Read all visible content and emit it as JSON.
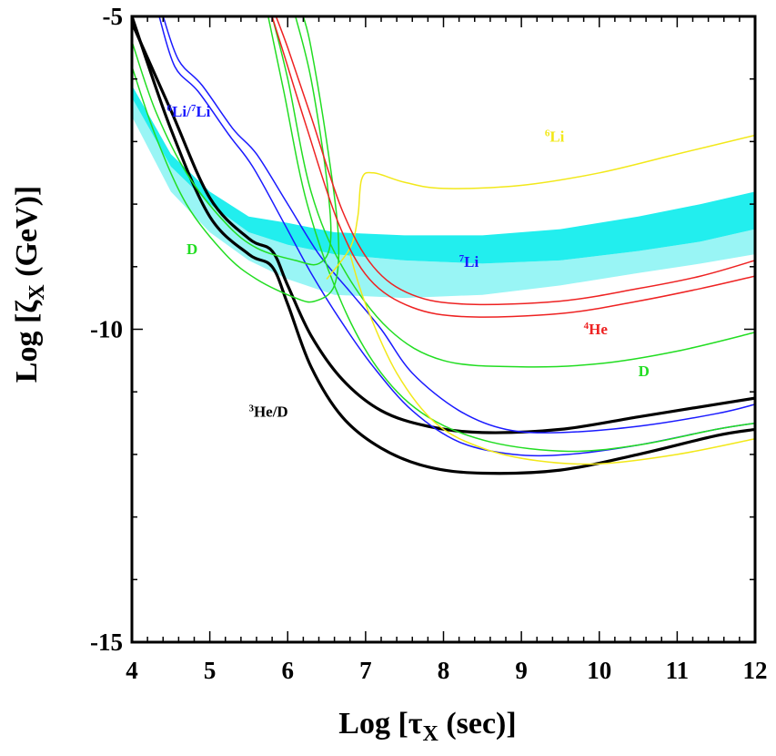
{
  "chart_data": {
    "type": "line",
    "x_axis": {
      "label": "Log [τ",
      "label_sub": "X",
      "label_end": " (sec)]",
      "lim": [
        4,
        12
      ],
      "ticks": [
        "4",
        "5",
        "6",
        "7",
        "8",
        "9",
        "10",
        "11",
        "12"
      ]
    },
    "y_axis": {
      "label": "Log [ζ",
      "label_sub": "X",
      "label_end": " (GeV)]",
      "lim": [
        -15,
        -5
      ],
      "ticks": [
        "-5",
        "-10",
        "-15"
      ]
    },
    "colors": {
      "black": "#000000",
      "blue": "#1a1aff",
      "green": "#22dd22",
      "red": "#ee2222",
      "yellow": "#f2e81a",
      "cyan": "#22eeee",
      "cyan_light": "#99f5f5"
    },
    "labels": [
      {
        "text": "6",
        "text2": "Li/",
        "text3": "7",
        "text4": "Li",
        "color": "blue"
      },
      {
        "text": "6",
        "text2": "Li",
        "color": "yellow"
      },
      {
        "text": "7",
        "text2": "Li",
        "color": "blue"
      },
      {
        "text": "4",
        "text2": "He",
        "color": "red"
      },
      {
        "text": "D",
        "color": "green"
      },
      {
        "text": "D",
        "color": "green"
      },
      {
        "text": "3",
        "text2": "He/D",
        "color": "black"
      }
    ],
    "series": [
      {
        "color": "black",
        "width": 3.2,
        "points": [
          [
            4,
            -5
          ],
          [
            4.5,
            -6.8
          ],
          [
            5,
            -8.2
          ],
          [
            5.5,
            -8.8
          ],
          [
            5.8,
            -9.0
          ],
          [
            6.0,
            -9.6
          ],
          [
            6.3,
            -10.6
          ],
          [
            6.7,
            -11.4
          ],
          [
            7.2,
            -11.9
          ],
          [
            7.8,
            -12.2
          ],
          [
            8.5,
            -12.3
          ],
          [
            9.5,
            -12.25
          ],
          [
            10.5,
            -12.0
          ],
          [
            11.5,
            -11.7
          ],
          [
            12,
            -11.6
          ]
        ]
      },
      {
        "color": "black",
        "width": 3.2,
        "points": [
          [
            4,
            -5.1
          ],
          [
            4.5,
            -6.5
          ],
          [
            5,
            -7.9
          ],
          [
            5.5,
            -8.55
          ],
          [
            5.8,
            -8.75
          ],
          [
            6.0,
            -9.3
          ],
          [
            6.3,
            -10.1
          ],
          [
            6.7,
            -10.8
          ],
          [
            7.2,
            -11.3
          ],
          [
            7.8,
            -11.55
          ],
          [
            8.5,
            -11.65
          ],
          [
            9.5,
            -11.6
          ],
          [
            10.5,
            -11.4
          ],
          [
            11.5,
            -11.2
          ],
          [
            12,
            -11.1
          ]
        ]
      },
      {
        "color": "blue",
        "width": 1.5,
        "points": [
          [
            4.4,
            -5
          ],
          [
            4.6,
            -5.7
          ],
          [
            4.9,
            -6.1
          ],
          [
            5.3,
            -6.8
          ],
          [
            5.6,
            -7.2
          ],
          [
            6.0,
            -8.0
          ],
          [
            6.4,
            -8.8
          ],
          [
            6.8,
            -9.4
          ],
          [
            7.2,
            -10.0
          ],
          [
            7.6,
            -10.7
          ],
          [
            8.2,
            -11.3
          ],
          [
            8.8,
            -11.6
          ],
          [
            9.5,
            -11.65
          ],
          [
            10.5,
            -11.55
          ],
          [
            11.5,
            -11.35
          ],
          [
            12,
            -11.2
          ]
        ]
      },
      {
        "color": "blue",
        "width": 1.5,
        "points": [
          [
            4.35,
            -5
          ],
          [
            4.55,
            -5.8
          ],
          [
            4.85,
            -6.2
          ],
          [
            5.25,
            -6.9
          ],
          [
            5.55,
            -7.4
          ],
          [
            5.95,
            -8.3
          ],
          [
            6.3,
            -9.1
          ],
          [
            6.7,
            -9.9
          ],
          [
            7.1,
            -10.6
          ],
          [
            7.6,
            -11.3
          ],
          [
            8.2,
            -11.8
          ],
          [
            8.9,
            -12.0
          ],
          [
            9.6,
            -12.0
          ],
          [
            10.5,
            -11.85
          ],
          [
            11.5,
            -11.6
          ],
          [
            12,
            -11.5
          ]
        ]
      },
      {
        "color": "green",
        "width": 1.5,
        "points": [
          [
            4,
            -5.4
          ],
          [
            4.3,
            -6.5
          ],
          [
            4.7,
            -7.5
          ],
          [
            5.2,
            -8.3
          ],
          [
            5.6,
            -8.7
          ],
          [
            6.1,
            -8.9
          ],
          [
            6.4,
            -8.95
          ],
          [
            6.55,
            -8.6
          ],
          [
            6.5,
            -7.6
          ],
          [
            6.3,
            -6.0
          ],
          [
            6.1,
            -5
          ]
        ]
      },
      {
        "color": "green",
        "width": 1.5,
        "points": [
          [
            4,
            -5.8
          ],
          [
            4.3,
            -6.9
          ],
          [
            4.7,
            -8.0
          ],
          [
            5.2,
            -8.8
          ],
          [
            5.6,
            -9.2
          ],
          [
            6.1,
            -9.5
          ],
          [
            6.35,
            -9.55
          ],
          [
            6.6,
            -9.3
          ],
          [
            6.65,
            -8.5
          ],
          [
            6.5,
            -7.0
          ],
          [
            6.3,
            -5.5
          ],
          [
            6.2,
            -5
          ]
        ]
      },
      {
        "color": "green",
        "width": 1.5,
        "points": [
          [
            5.8,
            -5
          ],
          [
            6.0,
            -6.0
          ],
          [
            6.3,
            -7.8
          ],
          [
            6.7,
            -9.0
          ],
          [
            7.3,
            -10.0
          ],
          [
            8.0,
            -10.5
          ],
          [
            9.0,
            -10.6
          ],
          [
            10,
            -10.55
          ],
          [
            11,
            -10.35
          ],
          [
            12,
            -10.05
          ]
        ]
      },
      {
        "color": "green",
        "width": 1.5,
        "points": [
          [
            5.75,
            -5
          ],
          [
            5.95,
            -6.2
          ],
          [
            6.25,
            -8.0
          ],
          [
            6.7,
            -9.6
          ],
          [
            7.2,
            -10.7
          ],
          [
            7.8,
            -11.4
          ],
          [
            8.6,
            -11.8
          ],
          [
            9.6,
            -11.95
          ],
          [
            10.5,
            -11.85
          ],
          [
            11.5,
            -11.6
          ],
          [
            12,
            -11.5
          ]
        ]
      },
      {
        "color": "yellow",
        "width": 1.5,
        "points": [
          [
            6.5,
            -9.2
          ],
          [
            6.8,
            -8.7
          ],
          [
            6.9,
            -8.2
          ],
          [
            6.95,
            -7.6
          ],
          [
            7.1,
            -7.5
          ],
          [
            7.5,
            -7.65
          ],
          [
            8.0,
            -7.75
          ],
          [
            9,
            -7.7
          ],
          [
            10,
            -7.5
          ],
          [
            11,
            -7.2
          ],
          [
            12,
            -6.9
          ]
        ]
      },
      {
        "color": "yellow",
        "width": 1.5,
        "points": [
          [
            6.8,
            -8.8
          ],
          [
            7.0,
            -9.6
          ],
          [
            7.4,
            -10.7
          ],
          [
            7.9,
            -11.5
          ],
          [
            8.5,
            -11.9
          ],
          [
            9.2,
            -12.1
          ],
          [
            10,
            -12.15
          ],
          [
            11,
            -12.0
          ],
          [
            12,
            -11.75
          ]
        ]
      },
      {
        "color": "red",
        "width": 1.5,
        "points": [
          [
            5.85,
            -5
          ],
          [
            6.0,
            -5.5
          ],
          [
            6.3,
            -6.6
          ],
          [
            6.7,
            -8.1
          ],
          [
            7.1,
            -9.0
          ],
          [
            7.6,
            -9.45
          ],
          [
            8.3,
            -9.6
          ],
          [
            9.5,
            -9.55
          ],
          [
            10.5,
            -9.35
          ],
          [
            11.3,
            -9.15
          ],
          [
            12,
            -8.9
          ]
        ]
      },
      {
        "color": "red",
        "width": 1.5,
        "points": [
          [
            5.8,
            -5
          ],
          [
            5.95,
            -5.6
          ],
          [
            6.25,
            -6.8
          ],
          [
            6.65,
            -8.3
          ],
          [
            7.05,
            -9.2
          ],
          [
            7.6,
            -9.65
          ],
          [
            8.3,
            -9.8
          ],
          [
            9.5,
            -9.75
          ],
          [
            10.5,
            -9.55
          ],
          [
            11.3,
            -9.35
          ],
          [
            12,
            -9.15
          ]
        ]
      }
    ],
    "bands": [
      {
        "color": "cyan_light",
        "upper": [
          [
            4,
            -6.3
          ],
          [
            4.5,
            -7.4
          ],
          [
            5,
            -8.0
          ],
          [
            5.5,
            -8.45
          ],
          [
            6,
            -8.65
          ],
          [
            6.6,
            -8.8
          ],
          [
            7.5,
            -8.9
          ],
          [
            8.5,
            -8.95
          ],
          [
            9.5,
            -8.9
          ],
          [
            10.5,
            -8.75
          ],
          [
            11.3,
            -8.6
          ],
          [
            12,
            -8.4
          ]
        ],
        "lower": [
          [
            4,
            -6.6
          ],
          [
            4.5,
            -7.8
          ],
          [
            5,
            -8.45
          ],
          [
            5.5,
            -8.9
          ],
          [
            6,
            -9.2
          ],
          [
            6.6,
            -9.45
          ],
          [
            7.5,
            -9.5
          ],
          [
            8.5,
            -9.45
          ],
          [
            9.5,
            -9.3
          ],
          [
            10.5,
            -9.1
          ],
          [
            11.3,
            -8.95
          ],
          [
            12,
            -8.8
          ]
        ]
      },
      {
        "color": "cyan",
        "upper": [
          [
            4,
            -6.1
          ],
          [
            4.5,
            -7.2
          ],
          [
            5,
            -7.8
          ],
          [
            5.5,
            -8.2
          ],
          [
            6,
            -8.3
          ],
          [
            6.6,
            -8.45
          ],
          [
            7.5,
            -8.5
          ],
          [
            8.5,
            -8.5
          ],
          [
            9.5,
            -8.4
          ],
          [
            10.5,
            -8.2
          ],
          [
            11.3,
            -8.0
          ],
          [
            12,
            -7.8
          ]
        ],
        "lower": [
          [
            4,
            -6.3
          ],
          [
            4.5,
            -7.4
          ],
          [
            5,
            -8.0
          ],
          [
            5.5,
            -8.45
          ],
          [
            6,
            -8.65
          ],
          [
            6.6,
            -8.8
          ],
          [
            7.5,
            -8.9
          ],
          [
            8.5,
            -8.95
          ],
          [
            9.5,
            -8.9
          ],
          [
            10.5,
            -8.75
          ],
          [
            11.3,
            -8.6
          ],
          [
            12,
            -8.4
          ]
        ]
      }
    ]
  }
}
